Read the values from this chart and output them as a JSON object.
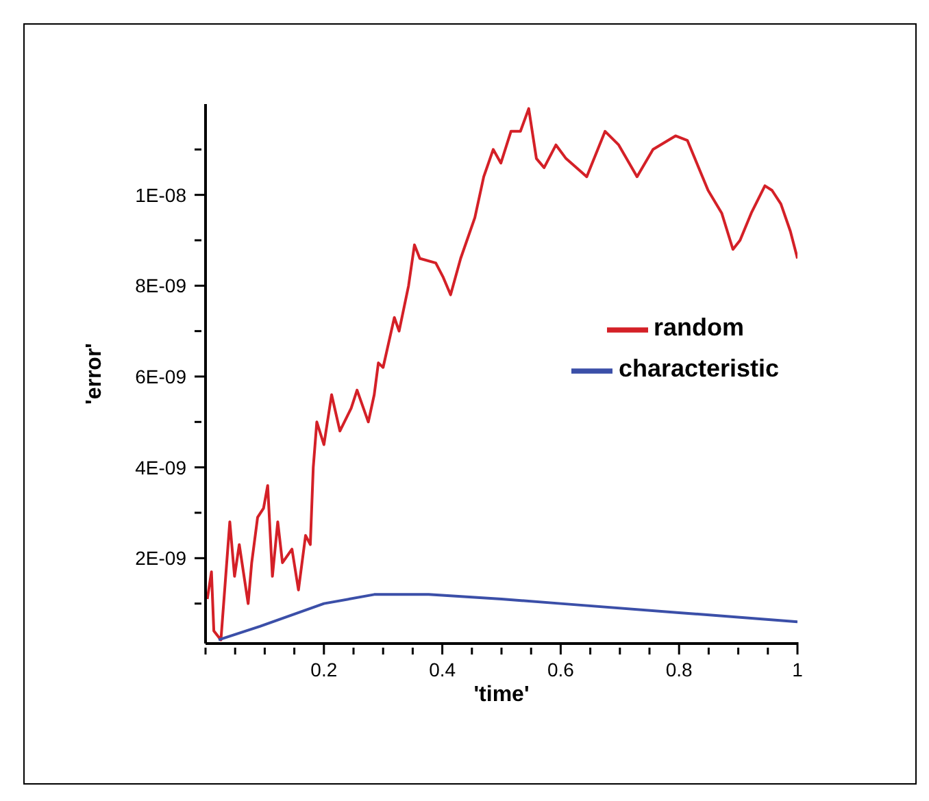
{
  "chart_data": {
    "type": "line",
    "xlabel": "'time'",
    "ylabel": "'error'",
    "xlim": [
      0,
      1
    ],
    "ylim": [
      1.2e-10,
      1.2e-08
    ],
    "xticks": [
      {
        "value": 0,
        "label": null
      },
      {
        "value": 0.05,
        "label": null
      },
      {
        "value": 0.1,
        "label": null
      },
      {
        "value": 0.15,
        "label": null
      },
      0.2,
      {
        "value": 0.25,
        "label": null
      },
      {
        "value": 0.3,
        "label": null
      },
      {
        "value": 0.35,
        "label": null
      },
      0.4,
      {
        "value": 0.45,
        "label": null
      },
      {
        "value": 0.5,
        "label": null
      },
      {
        "value": 0.55,
        "label": null
      },
      0.6,
      {
        "value": 0.65,
        "label": null
      },
      {
        "value": 0.7,
        "label": null
      },
      {
        "value": 0.75,
        "label": null
      },
      0.8,
      {
        "value": 0.85,
        "label": null
      },
      {
        "value": 0.9,
        "label": null
      },
      {
        "value": 0.95,
        "label": null
      },
      1
    ],
    "yticks": [
      {
        "value": 1e-09,
        "label": null
      },
      {
        "value": 2e-09,
        "label": "2E-09"
      },
      {
        "value": 3e-09,
        "label": null
      },
      {
        "value": 4e-09,
        "label": "4E-09"
      },
      {
        "value": 5e-09,
        "label": null
      },
      {
        "value": 6e-09,
        "label": "6E-09"
      },
      {
        "value": 7e-09,
        "label": null
      },
      {
        "value": 8e-09,
        "label": "8E-09"
      },
      {
        "value": 9e-09,
        "label": null
      },
      {
        "value": 1e-08,
        "label": "1E-08"
      },
      {
        "value": 1.1e-08,
        "label": null
      }
    ],
    "grid": false,
    "legend": "right",
    "marker": "none",
    "line_style": "solid",
    "series": [
      {
        "name": "random",
        "color": "#d42027",
        "x": [
          0.003,
          0.01,
          0.014,
          0.026,
          0.041,
          0.049,
          0.057,
          0.072,
          0.078,
          0.088,
          0.098,
          0.105,
          0.113,
          0.122,
          0.13,
          0.146,
          0.157,
          0.169,
          0.177,
          0.182,
          0.188,
          0.2,
          0.213,
          0.227,
          0.246,
          0.256,
          0.275,
          0.285,
          0.292,
          0.3,
          0.319,
          0.327,
          0.343,
          0.353,
          0.362,
          0.389,
          0.401,
          0.414,
          0.431,
          0.455,
          0.47,
          0.486,
          0.499,
          0.516,
          0.532,
          0.546,
          0.559,
          0.572,
          0.592,
          0.609,
          0.644,
          0.675,
          0.698,
          0.729,
          0.756,
          0.794,
          0.814,
          0.849,
          0.872,
          0.891,
          0.903,
          0.922,
          0.945,
          0.957,
          0.972,
          0.988,
          1.0
        ],
        "values": [
          1.1e-09,
          1.7e-09,
          4e-10,
          2e-10,
          2.8e-09,
          1.6e-09,
          2.3e-09,
          1e-09,
          1.9e-09,
          2.9e-09,
          3.1e-09,
          3.6e-09,
          1.6e-09,
          2.8e-09,
          1.9e-09,
          2.2e-09,
          1.3e-09,
          2.5e-09,
          2.3e-09,
          4e-09,
          5e-09,
          4.5e-09,
          5.6e-09,
          4.8e-09,
          5.3e-09,
          5.7e-09,
          5e-09,
          5.6e-09,
          6.3e-09,
          6.2e-09,
          7.3e-09,
          7e-09,
          8e-09,
          8.9e-09,
          8.6e-09,
          8.5e-09,
          8.2e-09,
          7.8e-09,
          8.6e-09,
          9.5e-09,
          1.04e-08,
          1.1e-08,
          1.07e-08,
          1.14e-08,
          1.14e-08,
          1.19e-08,
          1.08e-08,
          1.06e-08,
          1.11e-08,
          1.08e-08,
          1.04e-08,
          1.14e-08,
          1.11e-08,
          1.04e-08,
          1.1e-08,
          1.13e-08,
          1.12e-08,
          1.01e-08,
          9.6e-09,
          8.8e-09,
          9e-09,
          9.6e-09,
          1.02e-08,
          1.01e-08,
          9.8e-09,
          9.2e-09,
          8.6e-09
        ]
      },
      {
        "name": "characteristic",
        "color": "#3b4fa8",
        "x": [
          0.022,
          0.092,
          0.2,
          0.285,
          0.377,
          0.5,
          0.6,
          0.8,
          1.0
        ],
        "values": [
          2e-10,
          5e-10,
          1e-09,
          1.2e-09,
          1.2e-09,
          1.1e-09,
          1e-09,
          8e-10,
          6e-10
        ]
      }
    ]
  }
}
